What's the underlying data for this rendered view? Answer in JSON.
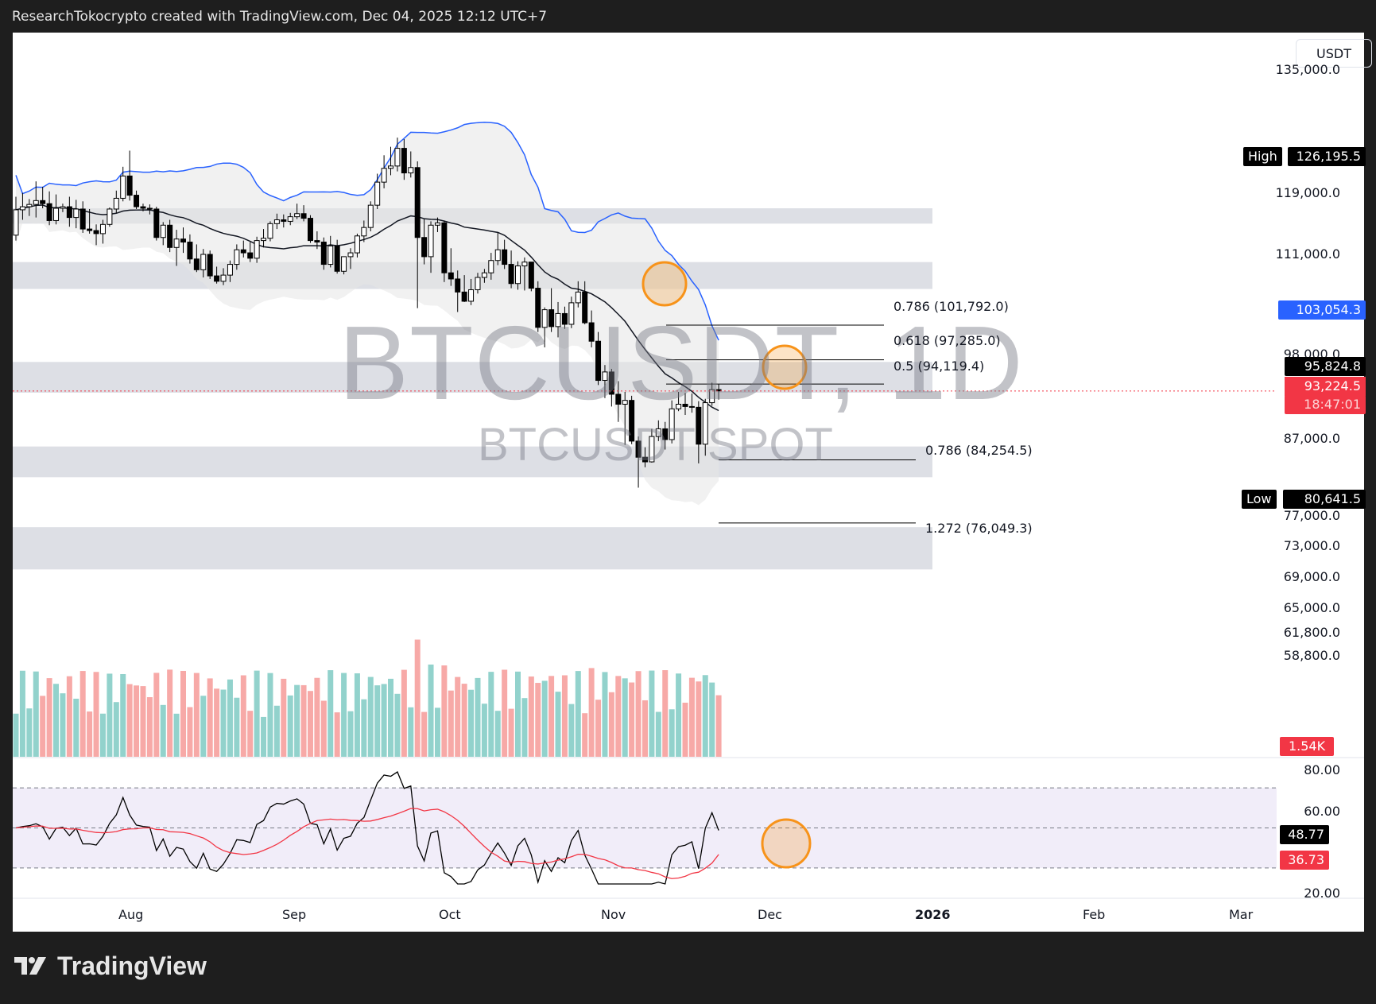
{
  "header": {
    "title": "ResearchTokocrypto created with TradingView.com, Dec 04, 2025 12:12 UTC+7"
  },
  "chart": {
    "currency": "USDT",
    "watermark_main": "BTCUSDT, 1D",
    "watermark_sub": "BTCUSDT SPOT",
    "price_axis": [
      "135,000.0",
      "119,000.0",
      "111,000.0",
      "98,000.0",
      "87,000.0",
      "77,000.0",
      "73,000.0",
      "69,000.0",
      "65,000.0",
      "61,800.0",
      "58,800.0"
    ],
    "tags": {
      "high_label": "High",
      "high_value": "126,195.5",
      "upper_band": "103,054.3",
      "ma_value": "95,824.8",
      "last_price": "93,224.5",
      "countdown": "18:47:01",
      "low_label": "Low",
      "low_value": "80,641.5",
      "volume": "1.54K"
    },
    "rsi_axis": [
      "80.00",
      "60.00",
      "20.00"
    ],
    "rsi_tags": {
      "rsi": "48.77",
      "rsi_ma": "36.73"
    },
    "time_axis": [
      "Aug",
      "Sep",
      "Oct",
      "Nov",
      "Dec",
      "2026",
      "Feb",
      "Mar"
    ],
    "fib_labels": [
      "0.786 (101,792.0)",
      "0.618 (97,285.0)",
      "0.5 (94,119.4)",
      "0.786 (84,254.5)",
      "1.272 (76,049.3)"
    ],
    "colors": {
      "up_volume": "#92d2cc",
      "down_volume": "#f7a9a7",
      "upper_band": "#2962ff",
      "ma": "#131722",
      "rsi_ma": "#f23645",
      "highlight": "#f7931a",
      "last_price": "#f23645"
    }
  },
  "chart_data": {
    "type": "candlestick",
    "title": "BTCUSDT, 1D — BTCUSDT SPOT",
    "xlabel": "",
    "ylabel": "USDT",
    "x_ticks": [
      "Aug",
      "Sep",
      "Oct",
      "Nov",
      "Dec",
      "2026",
      "Feb",
      "Mar"
    ],
    "y_ticks": [
      135000,
      119000,
      111000,
      98000,
      87000,
      77000,
      73000,
      69000,
      65000,
      61800,
      58800
    ],
    "high": 126195.5,
    "low": 80641.5,
    "last": 93224.5,
    "fibonacci": [
      {
        "level": 0.786,
        "price": 101792.0
      },
      {
        "level": 0.618,
        "price": 97285.0
      },
      {
        "level": 0.5,
        "price": 94119.4
      },
      {
        "level": 0.786,
        "price": 84254.5
      },
      {
        "level": 1.272,
        "price": 76049.3
      }
    ],
    "support_resistance_zones": [
      [
        115000,
        117000
      ],
      [
        106500,
        110000
      ],
      [
        93000,
        97000
      ],
      [
        82000,
        86000
      ],
      [
        70000,
        75500
      ]
    ],
    "indicators": {
      "upper_band_last": 103054.3,
      "ma_last": 95824.8,
      "volume_last": "1.54K",
      "rsi": 48.77,
      "rsi_ma": 36.73,
      "rsi_range": [
        20,
        80
      ]
    },
    "ohlc_approx": [
      [
        113500,
        118500,
        112800,
        116800
      ],
      [
        116800,
        119000,
        115500,
        117200
      ],
      [
        117200,
        118200,
        116000,
        117500
      ],
      [
        117500,
        120500,
        115800,
        118000
      ],
      [
        118000,
        119800,
        117000,
        117600
      ],
      [
        117600,
        119200,
        114800,
        115400
      ],
      [
        115400,
        118800,
        114900,
        117000
      ],
      [
        117000,
        117600,
        116500,
        117200
      ],
      [
        117200,
        118500,
        114600,
        115800
      ],
      [
        115800,
        118100,
        114400,
        116900
      ],
      [
        116900,
        117900,
        113800,
        114300
      ],
      [
        114300,
        116900,
        113700,
        114100
      ],
      [
        114100,
        114900,
        112200,
        113700
      ],
      [
        113700,
        115500,
        112400,
        114900
      ],
      [
        114900,
        117100,
        114600,
        116900
      ],
      [
        116900,
        119300,
        116400,
        118300
      ],
      [
        118300,
        122400,
        117900,
        121200
      ],
      [
        121200,
        124500,
        118000,
        118700
      ],
      [
        118700,
        119300,
        116900,
        117200
      ],
      [
        117200,
        117600,
        116600,
        117000
      ],
      [
        117000,
        117500,
        116200,
        116900
      ],
      [
        116900,
        117200,
        112800,
        113200
      ],
      [
        113200,
        115200,
        112200,
        114800
      ],
      [
        114800,
        115500,
        111300,
        111900
      ],
      [
        111900,
        114200,
        109500,
        113000
      ],
      [
        113000,
        114500,
        111200,
        112600
      ],
      [
        112600,
        113600,
        109800,
        110400
      ],
      [
        110400,
        112300,
        108700,
        109000
      ],
      [
        109000,
        111700,
        108000,
        111000
      ],
      [
        111000,
        111500,
        107800,
        108200
      ],
      [
        108200,
        109400,
        107200,
        107500
      ],
      [
        107500,
        109200,
        107000,
        108300
      ],
      [
        108300,
        110200,
        107400,
        109700
      ],
      [
        109700,
        112300,
        109000,
        111600
      ],
      [
        111600,
        112800,
        110600,
        111200
      ],
      [
        111200,
        112600,
        110000,
        110500
      ],
      [
        110500,
        113300,
        109900,
        112800
      ],
      [
        112800,
        114300,
        111900,
        113100
      ],
      [
        113100,
        115300,
        112700,
        115000
      ],
      [
        115000,
        116300,
        114300,
        115500
      ],
      [
        115500,
        116200,
        114500,
        115300
      ],
      [
        115300,
        116400,
        114800,
        115900
      ],
      [
        115900,
        117600,
        115600,
        116300
      ],
      [
        116300,
        117400,
        115300,
        115700
      ],
      [
        115700,
        116100,
        112500,
        112800
      ],
      [
        112800,
        114000,
        111700,
        112600
      ],
      [
        112600,
        113200,
        109000,
        109700
      ],
      [
        109700,
        113400,
        109300,
        112100
      ],
      [
        112100,
        112900,
        108500,
        108800
      ],
      [
        108800,
        110600,
        108400,
        110700
      ],
      [
        110700,
        111800,
        109100,
        111200
      ],
      [
        111200,
        113700,
        110600,
        113400
      ],
      [
        113400,
        115400,
        112600,
        114500
      ],
      [
        114500,
        117900,
        114000,
        117400
      ],
      [
        117400,
        121500,
        116900,
        120400
      ],
      [
        120400,
        123900,
        119600,
        122200
      ],
      [
        122200,
        125000,
        121300,
        122500
      ],
      [
        122500,
        126195,
        121800,
        124800
      ],
      [
        124800,
        126000,
        120700,
        121600
      ],
      [
        121600,
        124400,
        121000,
        122300
      ],
      [
        122300,
        123100,
        104000,
        113200
      ],
      [
        113200,
        115600,
        109700,
        110700
      ],
      [
        110700,
        115300,
        108600,
        114800
      ],
      [
        114800,
        115800,
        113900,
        115100
      ],
      [
        115100,
        115400,
        107400,
        108600
      ],
      [
        108600,
        111800,
        106900,
        107800
      ],
      [
        107800,
        108900,
        103500,
        106100
      ],
      [
        106100,
        108300,
        104800,
        104900
      ],
      [
        104900,
        107800,
        104400,
        106400
      ],
      [
        106400,
        108600,
        105900,
        108000
      ],
      [
        108000,
        109100,
        107300,
        108600
      ],
      [
        108600,
        111200,
        107700,
        110200
      ],
      [
        110200,
        113800,
        109600,
        111600
      ],
      [
        111600,
        112900,
        109100,
        109700
      ],
      [
        109700,
        111500,
        106600,
        107200
      ],
      [
        107200,
        110100,
        106400,
        109500
      ],
      [
        109500,
        110600,
        106300,
        110000
      ],
      [
        110000,
        109800,
        106200,
        106600
      ],
      [
        106600,
        107500,
        100900,
        101500
      ],
      [
        101500,
        104100,
        98900,
        103800
      ],
      [
        103800,
        106600,
        100900,
        101600
      ],
      [
        101600,
        104800,
        100200,
        103300
      ],
      [
        103300,
        104200,
        101300,
        101900
      ],
      [
        101900,
        105500,
        101400,
        104700
      ],
      [
        104700,
        107500,
        104100,
        106100
      ],
      [
        106100,
        107500,
        101900,
        102100
      ],
      [
        102100,
        103700,
        98900,
        99700
      ],
      [
        99700,
        100900,
        94000,
        94600
      ],
      [
        94600,
        96600,
        92300,
        95700
      ],
      [
        95700,
        96100,
        91200,
        92800
      ],
      [
        92800,
        94500,
        89200,
        91500
      ],
      [
        91500,
        93100,
        86200,
        92000
      ],
      [
        92000,
        92600,
        86300,
        86700
      ],
      [
        86700,
        87300,
        80641,
        84600
      ],
      [
        84600,
        85900,
        83300,
        84000
      ],
      [
        84000,
        88300,
        83900,
        87300
      ],
      [
        87300,
        89400,
        86700,
        88300
      ],
      [
        88300,
        89200,
        85600,
        86900
      ],
      [
        86900,
        92000,
        86400,
        90900
      ],
      [
        90900,
        93100,
        90600,
        91500
      ],
      [
        91500,
        93000,
        90100,
        91200
      ],
      [
        91200,
        92900,
        90400,
        91100
      ],
      [
        91100,
        91900,
        83800,
        86300
      ],
      [
        86300,
        92200,
        84800,
        91700
      ],
      [
        91700,
        94300,
        91300,
        93400
      ],
      [
        93400,
        94100,
        92100,
        93224
      ]
    ]
  }
}
